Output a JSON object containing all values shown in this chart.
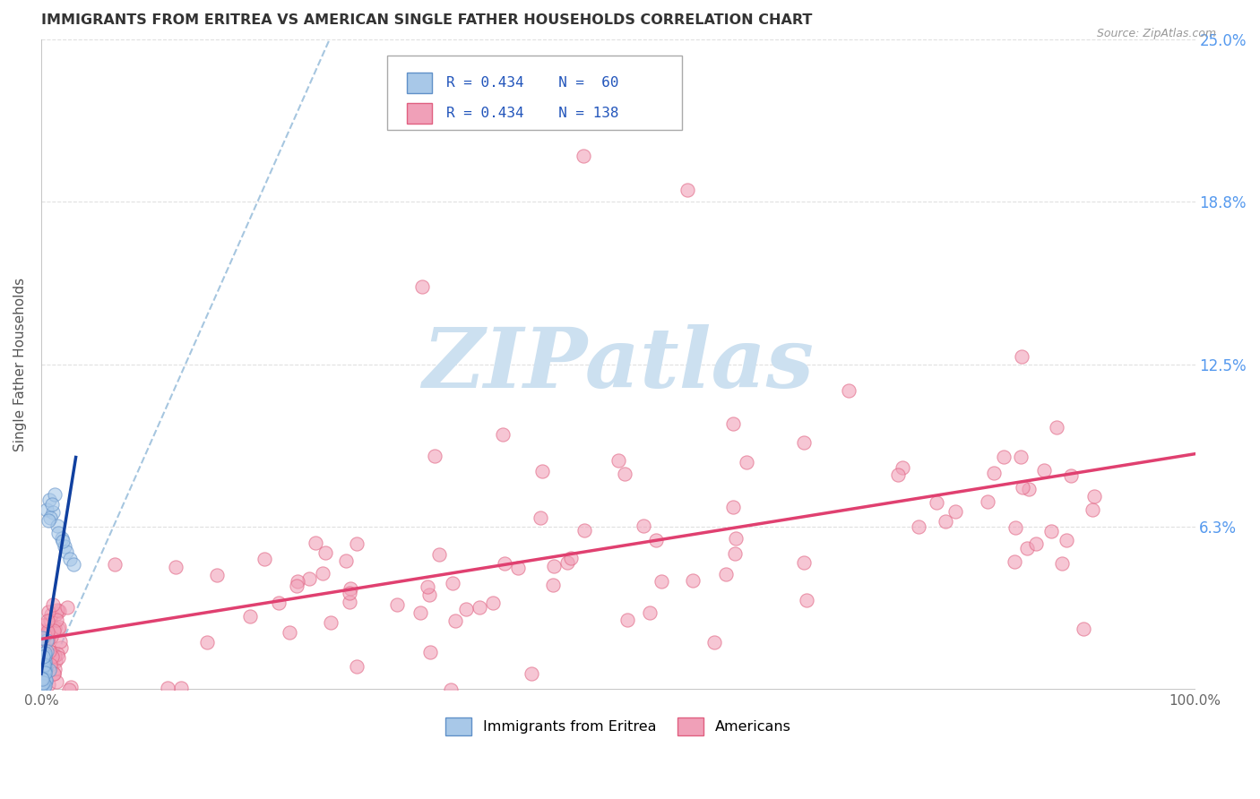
{
  "title": "IMMIGRANTS FROM ERITREA VS AMERICAN SINGLE FATHER HOUSEHOLDS CORRELATION CHART",
  "source": "Source: ZipAtlas.com",
  "ylabel": "Single Father Households",
  "xlim": [
    0,
    1.0
  ],
  "ylim": [
    0,
    0.25
  ],
  "yticks": [
    0,
    0.0625,
    0.125,
    0.1875,
    0.25
  ],
  "ytick_labels": [
    "",
    "6.3%",
    "12.5%",
    "18.8%",
    "25.0%"
  ],
  "xtick_labels": [
    "0.0%",
    "",
    "",
    "",
    "100.0%"
  ],
  "xticks": [
    0,
    0.25,
    0.5,
    0.75,
    1.0
  ],
  "blue_R": 0.434,
  "blue_N": 60,
  "pink_R": 0.434,
  "pink_N": 138,
  "blue_color": "#a8c8e8",
  "pink_color": "#f0a0b8",
  "blue_edge": "#6090c8",
  "pink_edge": "#e06080",
  "blue_label": "Immigrants from Eritrea",
  "pink_label": "Americans",
  "blue_line_color": "#1040a0",
  "pink_line_color": "#e04070",
  "diag_color": "#90b8d8",
  "watermark": "ZIPatlas",
  "watermark_color": "#cce0f0",
  "background_color": "#ffffff",
  "grid_color": "#cccccc",
  "axis_color": "#bbbbbb",
  "title_color": "#333333",
  "ylabel_color": "#555555",
  "tick_color": "#666666",
  "right_tick_color": "#5599ee",
  "source_color": "#999999"
}
